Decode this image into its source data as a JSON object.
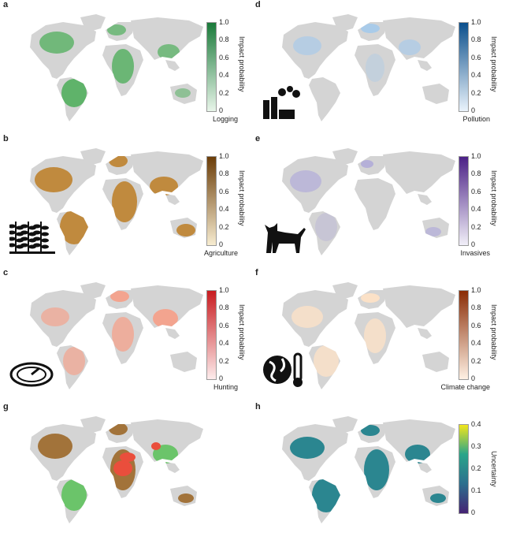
{
  "panels": [
    {
      "label": "a",
      "caption": "Logging",
      "cbar_title": "Impact probability",
      "ticks": [
        "1.0",
        "0.8",
        "0.6",
        "0.4",
        "0.2",
        "0"
      ],
      "colors": [
        "#1a7a3a",
        "#e8f5e9"
      ],
      "icon": "chainsaw-icon"
    },
    {
      "label": "d",
      "caption": "Pollution",
      "cbar_title": "Impact probability",
      "ticks": [
        "1.0",
        "0.8",
        "0.6",
        "0.4",
        "0.2",
        "0"
      ],
      "colors": [
        "#0b4f8c",
        "#eaf3fb"
      ],
      "icon": "factory-icon"
    },
    {
      "label": "b",
      "caption": "Agriculture",
      "cbar_title": "Impact probability",
      "ticks": [
        "1.0",
        "0.8",
        "0.6",
        "0.4",
        "0.2",
        "0"
      ],
      "colors": [
        "#6b3d08",
        "#f7ecd0"
      ],
      "icon": "crops-icon"
    },
    {
      "label": "e",
      "caption": "Invasives",
      "cbar_title": "Impact probability",
      "ticks": [
        "1.0",
        "0.8",
        "0.6",
        "0.4",
        "0.2",
        "0"
      ],
      "colors": [
        "#4b2186",
        "#f1eff8"
      ],
      "icon": "cat-icon"
    },
    {
      "label": "c",
      "caption": "Hunting",
      "cbar_title": "Impact probability",
      "ticks": [
        "1.0",
        "0.8",
        "0.6",
        "0.4",
        "0.2",
        "0"
      ],
      "colors": [
        "#c81c20",
        "#fdecec"
      ],
      "icon": "trap-icon"
    },
    {
      "label": "f",
      "caption": "Climate change",
      "cbar_title": "Impact probability",
      "ticks": [
        "1.0",
        "0.8",
        "0.6",
        "0.4",
        "0.2",
        "0"
      ],
      "colors": [
        "#8a2c05",
        "#fff1e4"
      ],
      "icon": "globe-thermometer-icon"
    },
    {
      "label": "g",
      "caption": "",
      "cbar_title": "",
      "ticks": [],
      "colors": [],
      "icon": ""
    },
    {
      "label": "h",
      "caption": "",
      "cbar_title": "Uncertainty",
      "ticks": [
        "0.4",
        "0.3",
        "0.2",
        "0.1",
        "0"
      ],
      "colors": [
        "#f2e61c",
        "#2aa58a",
        "#2c6f8e",
        "#452373"
      ],
      "icon": ""
    }
  ],
  "map_colors": {
    "land": "#d4d4d4",
    "logging": "#5fb36a",
    "pollution": "#a9cbe9",
    "agriculture": "#c08a3e",
    "invasives": "#b5b0d8",
    "hunting": "#f3a48f",
    "climate": "#fbe1c7",
    "g_green": "#6bc46a",
    "g_brown": "#a2733a",
    "g_red": "#ea4e3c",
    "h_teal": "#2b8690"
  }
}
